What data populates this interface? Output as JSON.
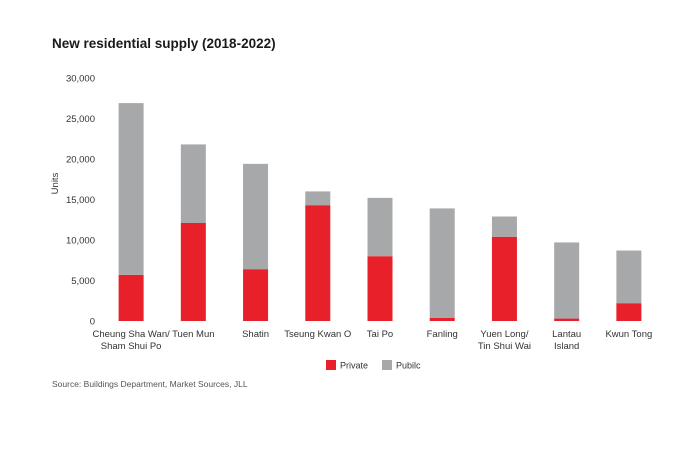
{
  "chart_data": {
    "type": "bar",
    "stacked": true,
    "title": "New residential supply (2018-2022)",
    "ylabel": "Units",
    "xlabel": "",
    "ylim": [
      0,
      30000
    ],
    "yticks": [
      "0",
      "5,000",
      "10,000",
      "15,000",
      "20,000",
      "25,000",
      "30,000"
    ],
    "ytick_values": [
      0,
      5000,
      10000,
      15000,
      20000,
      25000,
      30000
    ],
    "categories": [
      [
        "Cheung Sha Wan/",
        "Sham Shui Po"
      ],
      [
        "Tuen Mun"
      ],
      [
        "Shatin"
      ],
      [
        "Tseung Kwan O"
      ],
      [
        "Tai Po"
      ],
      [
        "Fanling"
      ],
      [
        "Yuen Long/",
        "Tin Shui Wai"
      ],
      [
        "Lantau",
        "Island"
      ],
      [
        "Kwun Tong"
      ]
    ],
    "series": [
      {
        "name": "Private",
        "color": "#e8202a",
        "values": [
          5700,
          12100,
          6400,
          14300,
          8000,
          400,
          10400,
          300,
          2200
        ]
      },
      {
        "name": "Pubilc",
        "color": "#a7a8aa",
        "values": [
          21200,
          9700,
          13000,
          1700,
          7200,
          13500,
          2500,
          9400,
          6500
        ]
      }
    ],
    "legend_position": "bottom-center",
    "grid": false
  },
  "footer": {
    "source": "Source: Buildings Department, Market Sources, JLL"
  }
}
